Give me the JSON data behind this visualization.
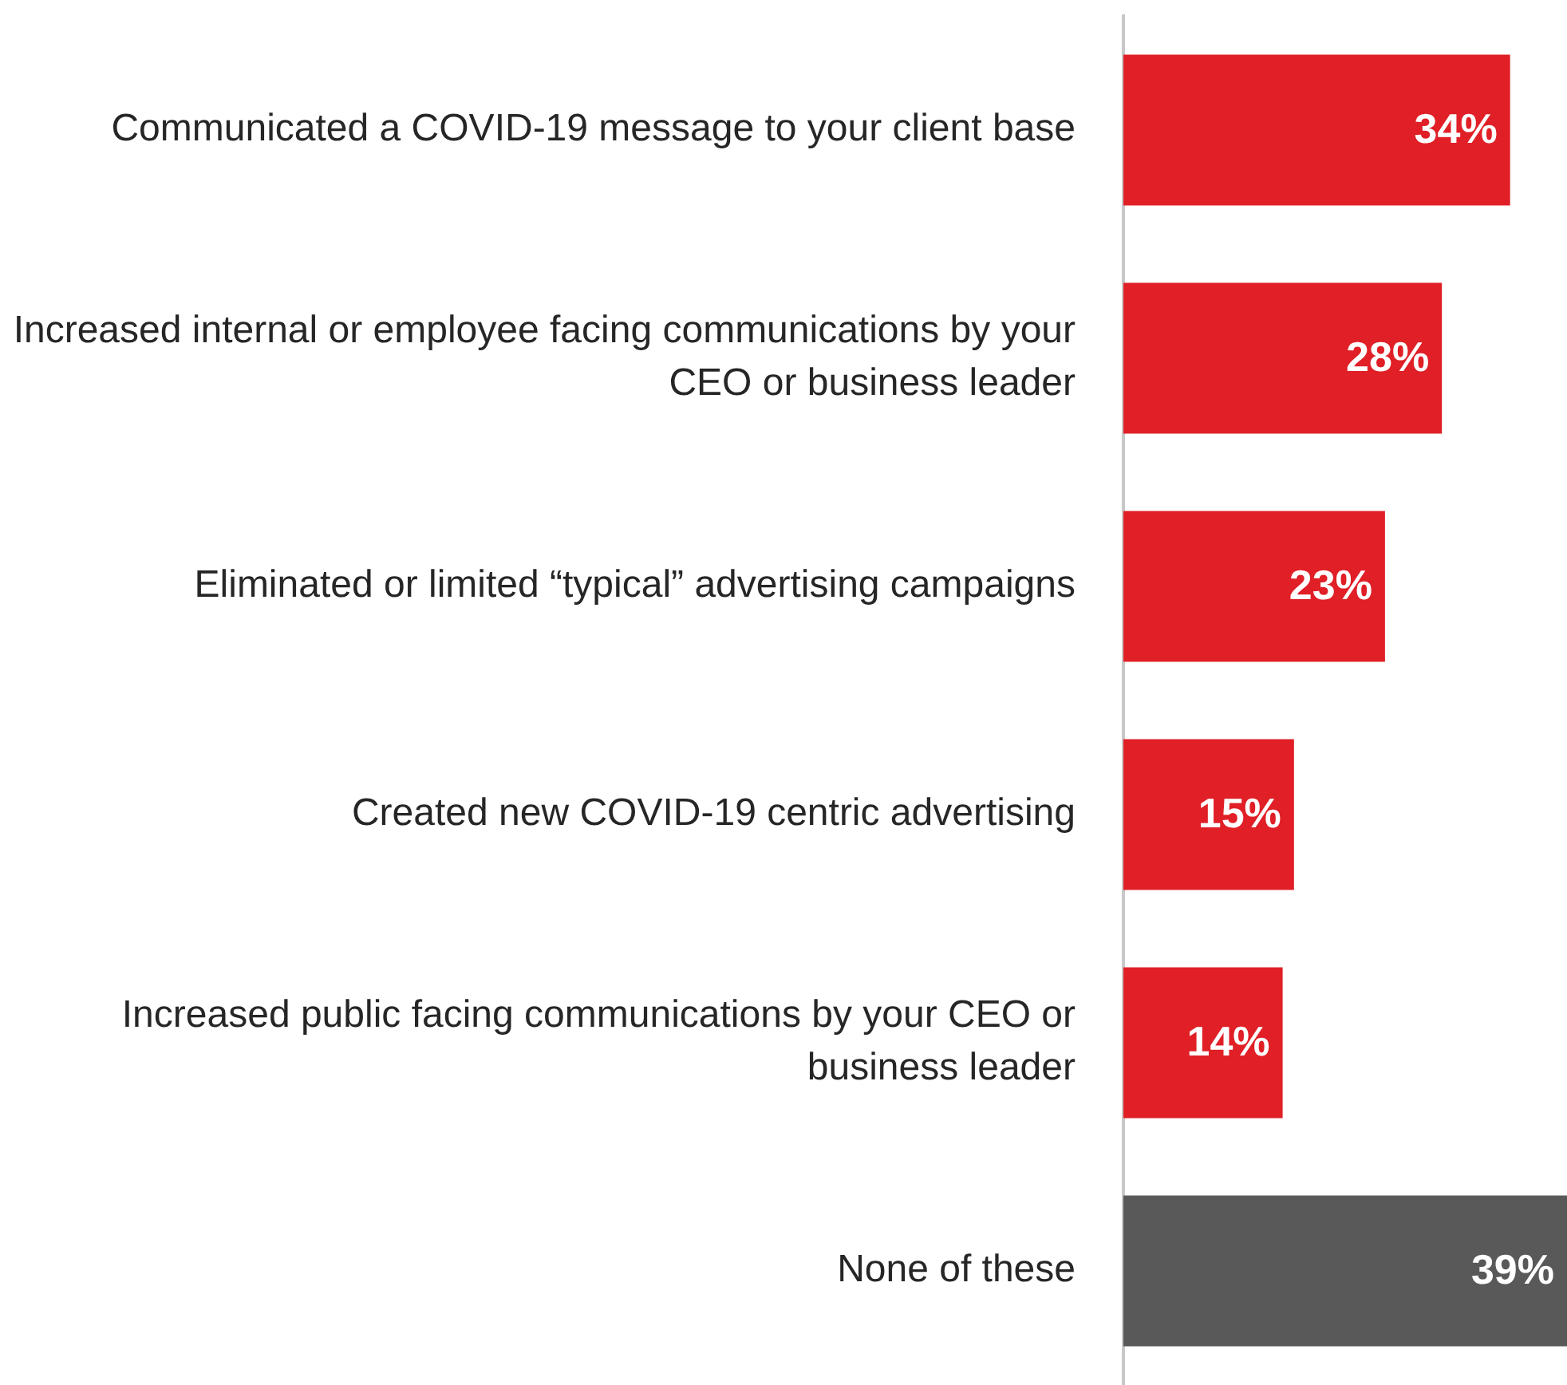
{
  "chart_data": {
    "type": "bar",
    "orientation": "horizontal",
    "categories": [
      "Communicated a COVID-19 message to your client base",
      "Increased internal or employee facing communications by your CEO or business leader",
      "Eliminated or limited “typical” advertising campaigns",
      "Created new COVID-19 centric advertising",
      "Increased public facing communications by your CEO or business leader",
      "None of these"
    ],
    "values": [
      34,
      28,
      23,
      15,
      14,
      39
    ],
    "colors": [
      "#e01f26",
      "#e01f26",
      "#e01f26",
      "#e01f26",
      "#e01f26",
      "#595959"
    ],
    "value_labels": [
      "34%",
      "28%",
      "23%",
      "15%",
      "14%",
      "39%"
    ],
    "grid": false,
    "legend": false
  }
}
